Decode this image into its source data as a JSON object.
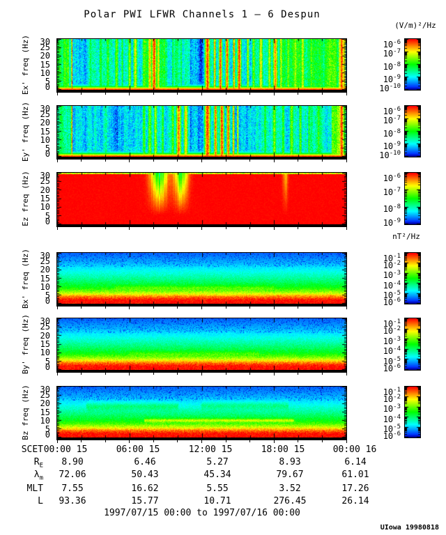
{
  "chart_data": {
    "type": "heatmap",
    "title": "Polar PWI LFWR Channels 1 — 6 Despun",
    "time_range": "1997/07/15 00:00 to 1997/07/16 00:00",
    "credit": "UIowa 19980818",
    "units": {
      "electric": "(V/m)²/Hz",
      "magnetic": "nT²/Hz"
    },
    "x_axis": {
      "name": "SCET",
      "tick_labels": [
        "00:00 15",
        "06:00 15",
        "12:00 15",
        "18:00 15",
        "00:00 16"
      ],
      "hours": [
        0,
        6,
        12,
        18,
        24
      ]
    },
    "y_axis": {
      "label": "freq (Hz)",
      "range": [
        0,
        30
      ],
      "tick_labels": [
        "30",
        "25",
        "20",
        "15",
        "10",
        "5",
        "0"
      ]
    },
    "panels": [
      {
        "id": "ex",
        "ylabel": "Ex' freq (Hz)",
        "style": "e",
        "colorbar": {
          "labels": [
            "10^-6",
            "10^-7",
            "10^-8",
            "10^-9",
            "10^-10"
          ]
        },
        "bg": [
          [
            0,
            0.04,
            0.52
          ],
          [
            0.04,
            0.053,
            0.3
          ],
          [
            0.053,
            0.3,
            0.27
          ],
          [
            0.3,
            0.38,
            0.42
          ],
          [
            0.38,
            0.46,
            0.3
          ],
          [
            0.46,
            0.52,
            0.14
          ],
          [
            0.52,
            0.66,
            0.24
          ],
          [
            0.66,
            0.77,
            0.3
          ],
          [
            0.77,
            0.88,
            0.42
          ],
          [
            0.88,
            0.975,
            0.5
          ],
          [
            0.975,
            1,
            0.8
          ]
        ],
        "stripes": [
          [
            0.05,
            0.003,
            0.97
          ],
          [
            0.115,
            0.008,
            0.45
          ],
          [
            0.15,
            0.01,
            0.5
          ],
          [
            0.175,
            0.008,
            0.55
          ],
          [
            0.205,
            0.01,
            0.6
          ],
          [
            0.225,
            0.006,
            0.5
          ],
          [
            0.25,
            0.008,
            0.65
          ],
          [
            0.27,
            0.01,
            0.72
          ],
          [
            0.3,
            0.008,
            0.6
          ],
          [
            0.32,
            0.01,
            0.8
          ],
          [
            0.335,
            0.012,
            0.95
          ],
          [
            0.35,
            0.008,
            0.75
          ],
          [
            0.37,
            0.006,
            0.55
          ],
          [
            0.4,
            0.005,
            0.5
          ],
          [
            0.43,
            0.004,
            0.45
          ],
          [
            0.52,
            0.012,
            0.95
          ],
          [
            0.545,
            0.006,
            0.85
          ],
          [
            0.565,
            0.008,
            0.95
          ],
          [
            0.588,
            0.008,
            0.92
          ],
          [
            0.612,
            0.006,
            0.88
          ],
          [
            0.63,
            0.01,
            0.95
          ],
          [
            0.66,
            0.006,
            0.7
          ],
          [
            0.68,
            0.008,
            0.62
          ],
          [
            0.705,
            0.01,
            0.75
          ],
          [
            0.735,
            0.008,
            0.68
          ],
          [
            0.755,
            0.012,
            0.85
          ],
          [
            0.775,
            0.008,
            0.7
          ],
          [
            0.8,
            0.01,
            0.62
          ],
          [
            0.825,
            0.008,
            0.66
          ],
          [
            0.85,
            0.01,
            0.7
          ],
          [
            0.88,
            0.008,
            0.6
          ],
          [
            0.985,
            0.01,
            0.95
          ]
        ]
      },
      {
        "id": "ey",
        "ylabel": "Ey' freq (Hz)",
        "style": "e",
        "colorbar": {
          "labels": [
            "10^-6",
            "10^-7",
            "10^-8",
            "10^-9",
            "10^-10"
          ]
        },
        "bg": [
          [
            0,
            0.048,
            0.3
          ],
          [
            0.048,
            0.3,
            0.22
          ],
          [
            0.3,
            0.46,
            0.26
          ],
          [
            0.46,
            0.52,
            0.15
          ],
          [
            0.52,
            0.66,
            0.22
          ],
          [
            0.66,
            0.78,
            0.26
          ],
          [
            0.78,
            0.95,
            0.3
          ],
          [
            0.95,
            1,
            0.55
          ]
        ],
        "stripes": [
          [
            0.05,
            0.003,
            0.97
          ],
          [
            0.3,
            0.008,
            0.55
          ],
          [
            0.32,
            0.01,
            0.62
          ],
          [
            0.34,
            0.008,
            0.68
          ],
          [
            0.365,
            0.006,
            0.55
          ],
          [
            0.4,
            0.008,
            0.6
          ],
          [
            0.42,
            0.012,
            0.88
          ],
          [
            0.445,
            0.01,
            0.78
          ],
          [
            0.52,
            0.014,
            0.95
          ],
          [
            0.548,
            0.008,
            0.9
          ],
          [
            0.57,
            0.01,
            0.95
          ],
          [
            0.592,
            0.008,
            0.92
          ],
          [
            0.61,
            0.005,
            0.88
          ],
          [
            0.625,
            0.004,
            0.8
          ],
          [
            0.72,
            0.008,
            0.5
          ],
          [
            0.752,
            0.01,
            0.62
          ],
          [
            0.782,
            0.008,
            0.55
          ],
          [
            0.812,
            0.01,
            0.62
          ],
          [
            0.842,
            0.008,
            0.58
          ],
          [
            0.872,
            0.006,
            0.52
          ],
          [
            0.905,
            0.008,
            0.55
          ],
          [
            0.985,
            0.012,
            0.95
          ]
        ]
      },
      {
        "id": "ez",
        "ylabel": "Ez freq (Hz)",
        "style": "ez",
        "colorbar": {
          "labels": [
            "10^-6",
            "10^-7",
            "10^-8",
            "10^-9"
          ]
        },
        "dips": [
          [
            0.352,
            0.02,
            1.0
          ],
          [
            0.428,
            0.016,
            0.85
          ],
          [
            0.79,
            0.006,
            0.35
          ]
        ]
      },
      {
        "id": "bx",
        "ylabel": "Bx' freq (Hz)",
        "style": "b",
        "colorbar": {
          "labels": [
            "10^-1",
            "10^-2",
            "10^-3",
            "10^-4",
            "10^-5",
            "10^-6"
          ]
        },
        "profile": [
          [
            0,
            1
          ],
          [
            2,
            1
          ],
          [
            4,
            0.88
          ],
          [
            6,
            0.7
          ],
          [
            8,
            0.57
          ],
          [
            10,
            0.48
          ],
          [
            13,
            0.4
          ],
          [
            16,
            0.33
          ],
          [
            20,
            0.25
          ],
          [
            24,
            0.18
          ],
          [
            30,
            0.1
          ]
        ],
        "features": [
          {
            "f": 9.5,
            "hw": 0.8,
            "x0": 0.2,
            "x1": 0.75,
            "boost": 0.07
          }
        ]
      },
      {
        "id": "by",
        "ylabel": "By' freq (Hz)",
        "style": "b",
        "colorbar": {
          "labels": [
            "10^-1",
            "10^-2",
            "10^-3",
            "10^-4",
            "10^-5",
            "10^-6"
          ]
        },
        "profile": [
          [
            0,
            1
          ],
          [
            2,
            1
          ],
          [
            4,
            0.88
          ],
          [
            6,
            0.7
          ],
          [
            8,
            0.57
          ],
          [
            10,
            0.48
          ],
          [
            13,
            0.4
          ],
          [
            16,
            0.33
          ],
          [
            20,
            0.25
          ],
          [
            24,
            0.18
          ],
          [
            30,
            0.1
          ]
        ],
        "features": [
          {
            "f": 9.5,
            "hw": 0.8,
            "x0": 0.25,
            "x1": 0.7,
            "boost": 0.06
          }
        ]
      },
      {
        "id": "bz",
        "ylabel": "Bz freq (Hz)",
        "style": "b",
        "colorbar": {
          "labels": [
            "10^-1",
            "10^-2",
            "10^-3",
            "10^-4",
            "10^-5",
            "10^-6"
          ]
        },
        "profile": [
          [
            0,
            1
          ],
          [
            2,
            1
          ],
          [
            4,
            0.88
          ],
          [
            6,
            0.7
          ],
          [
            8,
            0.57
          ],
          [
            10,
            0.48
          ],
          [
            13,
            0.4
          ],
          [
            16,
            0.33
          ],
          [
            20,
            0.25
          ],
          [
            24,
            0.18
          ],
          [
            30,
            0.1
          ]
        ],
        "features": [
          {
            "f": 10,
            "hw": 0.7,
            "x0": 0.3,
            "x1": 0.82,
            "boost": 0.22
          },
          {
            "f": 18.5,
            "hw": 1.5,
            "x0": 0.1,
            "x1": 0.42,
            "boost": 0.1
          },
          {
            "f": 19,
            "hw": 1.5,
            "x0": 0.5,
            "x1": 0.8,
            "boost": 0.09
          }
        ]
      }
    ],
    "ephemeris_rows": [
      {
        "label": "R_E",
        "values": [
          "8.90",
          "6.46",
          "5.27",
          "8.93",
          "6.14"
        ]
      },
      {
        "label": "λ_m",
        "values": [
          "72.06",
          "50.43",
          "45.34",
          "79.67",
          "61.01"
        ]
      },
      {
        "label": "MLT",
        "values": [
          "7.55",
          "16.62",
          "5.55",
          "3.52",
          "17.26"
        ]
      },
      {
        "label": "L",
        "values": [
          "93.36",
          "15.77",
          "10.71",
          "276.45",
          "26.14"
        ]
      }
    ]
  }
}
